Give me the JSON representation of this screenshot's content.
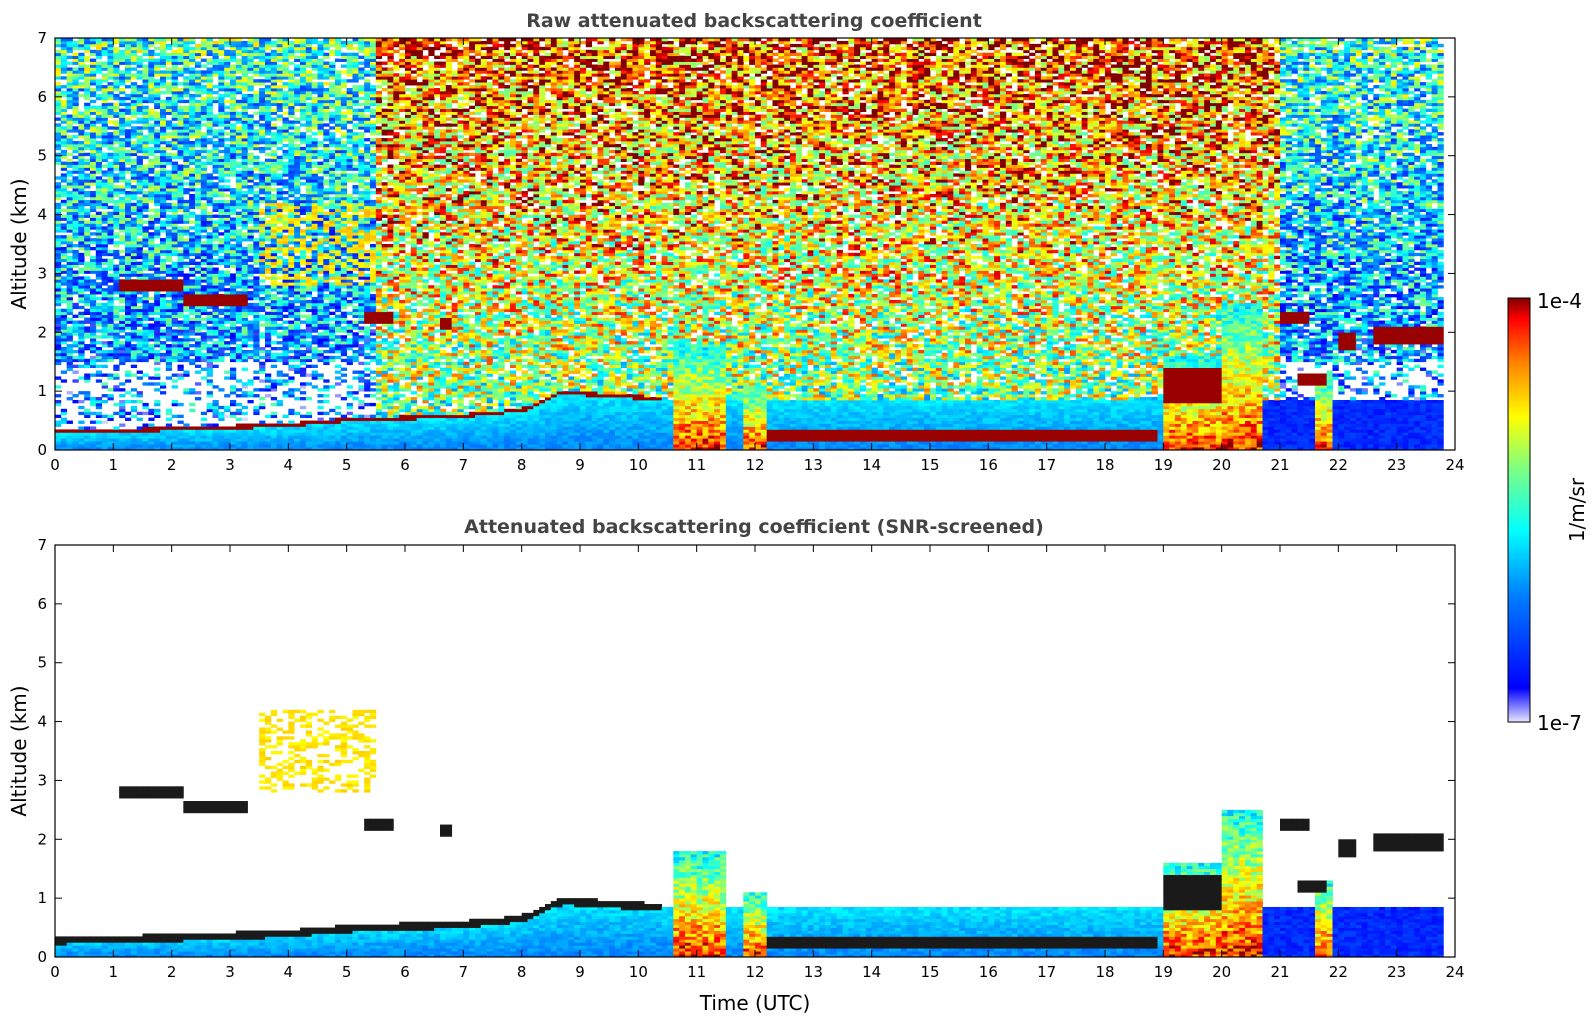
{
  "chart_data": [
    {
      "type": "heatmap",
      "title": "Raw attenuated backscattering coefficient",
      "ylabel": "Altitude (km)",
      "xlabel": "",
      "xlim": [
        0,
        24
      ],
      "ylim": [
        0,
        7
      ],
      "xticks": [
        0,
        1,
        2,
        3,
        4,
        5,
        6,
        7,
        8,
        9,
        10,
        11,
        12,
        13,
        14,
        15,
        16,
        17,
        18,
        19,
        20,
        21,
        22,
        23,
        24
      ],
      "yticks": [
        0,
        1,
        2,
        3,
        4,
        5,
        6,
        7
      ],
      "screened": false
    },
    {
      "type": "heatmap",
      "title": "Attenuated backscattering coefficient (SNR-screened)",
      "ylabel": "Altitude (km)",
      "xlabel": "Time (UTC)",
      "xlim": [
        0,
        24
      ],
      "ylim": [
        0,
        7
      ],
      "xticks": [
        0,
        1,
        2,
        3,
        4,
        5,
        6,
        7,
        8,
        9,
        10,
        11,
        12,
        13,
        14,
        15,
        16,
        17,
        18,
        19,
        20,
        21,
        22,
        23,
        24
      ],
      "yticks": [
        0,
        1,
        2,
        3,
        4,
        5,
        6,
        7
      ],
      "screened": true
    }
  ],
  "colorbar": {
    "label": "1/m/sr",
    "max_label": "1e-4",
    "min_label": "1e-7",
    "scale": "log",
    "colormap": "jet"
  },
  "features": {
    "boundary_layer": [
      [
        0,
        0.28
      ],
      [
        1,
        0.3
      ],
      [
        2,
        0.33
      ],
      [
        3,
        0.36
      ],
      [
        4,
        0.4
      ],
      [
        5,
        0.48
      ],
      [
        6,
        0.52
      ],
      [
        7,
        0.55
      ],
      [
        8,
        0.65
      ],
      [
        8.7,
        0.95
      ],
      [
        9.5,
        0.9
      ],
      [
        10.3,
        0.85
      ]
    ],
    "clouds": [
      {
        "t0": 1.1,
        "t1": 2.2,
        "z": 2.8,
        "dz": 0.1
      },
      {
        "t0": 2.2,
        "t1": 3.3,
        "z": 2.55,
        "dz": 0.12
      },
      {
        "t0": 5.3,
        "t1": 5.8,
        "z": 2.25,
        "dz": 0.1
      },
      {
        "t0": 6.6,
        "t1": 6.8,
        "z": 2.15,
        "dz": 0.08
      },
      {
        "t0": 21.0,
        "t1": 21.5,
        "z": 2.25,
        "dz": 0.12
      },
      {
        "t0": 21.3,
        "t1": 21.8,
        "z": 1.2,
        "dz": 0.12
      },
      {
        "t0": 22.0,
        "t1": 22.3,
        "z": 1.85,
        "dz": 0.15
      },
      {
        "t0": 22.6,
        "t1": 23.8,
        "z": 1.95,
        "dz": 0.15
      },
      {
        "t0": 12.2,
        "t1": 18.9,
        "z": 0.25,
        "dz": 0.1
      },
      {
        "t0": 19.0,
        "t1": 20.0,
        "z": 1.1,
        "dz": 0.3
      }
    ],
    "aerosol_plume": {
      "t0": 3.5,
      "t1": 5.5,
      "z0": 2.8,
      "z1": 4.2
    },
    "convective_columns": [
      {
        "t0": 10.6,
        "t1": 11.5,
        "top": 1.8
      },
      {
        "t0": 11.8,
        "t1": 12.2,
        "top": 1.1
      },
      {
        "t0": 19.0,
        "t1": 20.0,
        "top": 1.6
      },
      {
        "t0": 20.0,
        "t1": 20.7,
        "top": 2.5
      },
      {
        "t0": 21.6,
        "t1": 21.9,
        "top": 1.3
      }
    ]
  },
  "colors": {
    "background": "#ffffff",
    "frame": "#000000",
    "title": "#444444"
  }
}
